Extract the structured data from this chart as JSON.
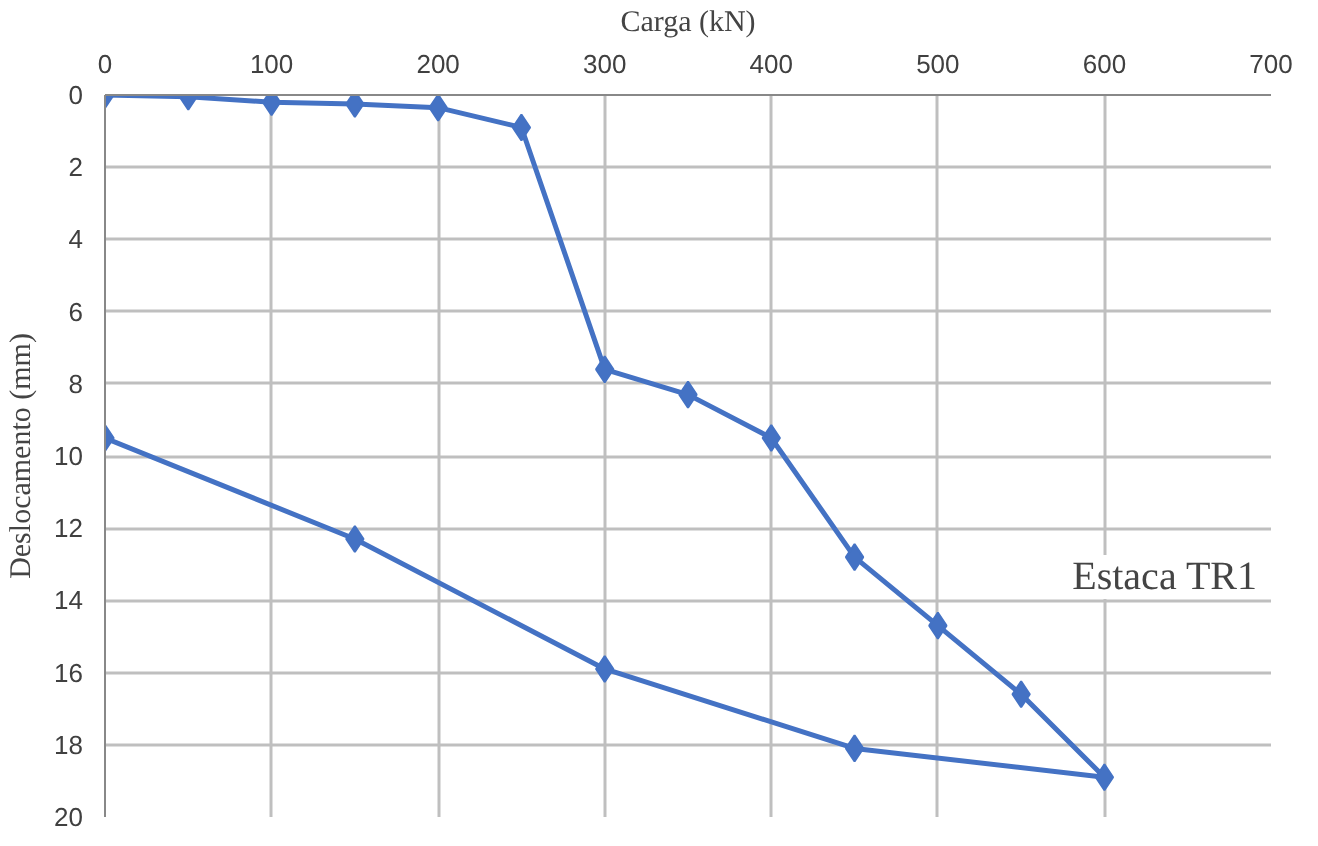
{
  "chart_data": {
    "type": "line",
    "xlabel": "Carga (kN)",
    "ylabel": "Deslocamento (mm)",
    "x": [
      0,
      50,
      100,
      150,
      200,
      250,
      300,
      350,
      400,
      450,
      500,
      550,
      600,
      450,
      300,
      150,
      0
    ],
    "series": [
      {
        "color": "#4472c4",
        "values": [
          0,
          0.05,
          0.2,
          0.25,
          0.35,
          0.9,
          7.6,
          8.3,
          9.5,
          12.8,
          14.7,
          16.6,
          18.9,
          18.1,
          15.9,
          12.3,
          9.5
        ]
      }
    ],
    "xlim": [
      0,
      700
    ],
    "xticks": [
      0,
      100,
      200,
      300,
      400,
      500,
      600,
      700
    ],
    "ylim": [
      20,
      0
    ],
    "yticks": [
      0,
      2,
      4,
      6,
      8,
      10,
      12,
      14,
      16,
      18,
      20
    ],
    "annotations": [
      "Estaca TR1"
    ],
    "grid": true,
    "marker": "diamond",
    "line_style": "solid"
  }
}
